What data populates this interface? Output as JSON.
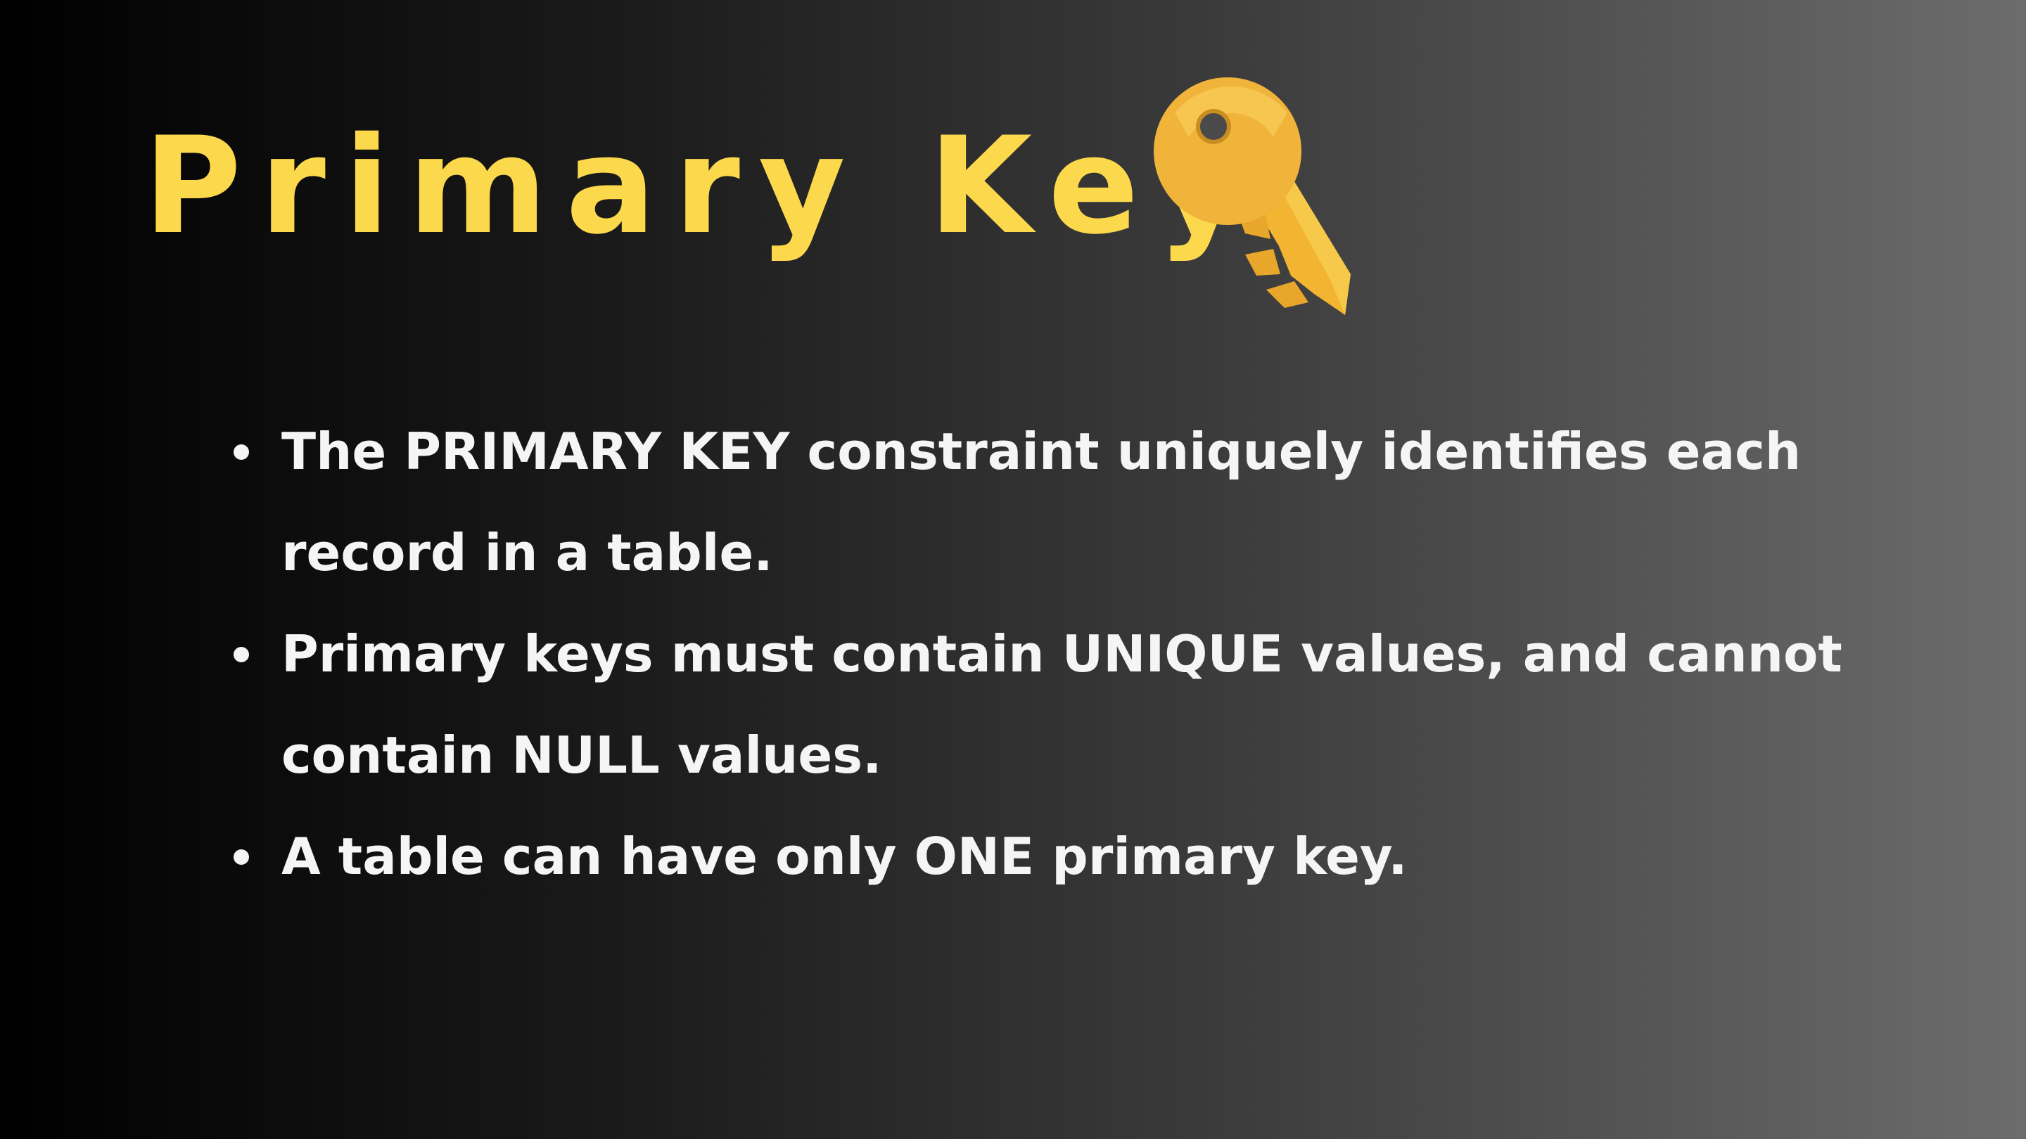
{
  "slide": {
    "title": "Primary Key",
    "title_color": "#fcd94c",
    "icon": "key-icon",
    "bullets": [
      "The PRIMARY KEY constraint uniquely identifies each record in a table.",
      "Primary keys must contain UNIQUE values, and cannot contain NULL values.",
      "A table can have only ONE primary key."
    ]
  }
}
